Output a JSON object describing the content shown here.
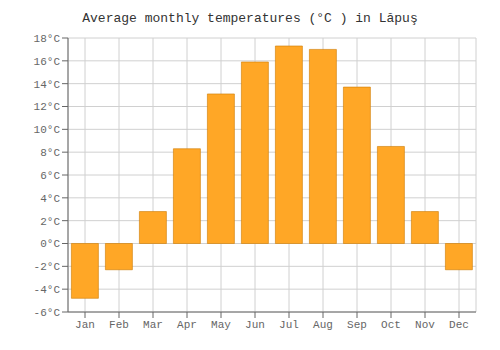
{
  "chart_data": {
    "type": "bar",
    "title": "Average monthly temperatures (°C ) in Lăpuş",
    "categories": [
      "Jan",
      "Feb",
      "Mar",
      "Apr",
      "May",
      "Jun",
      "Jul",
      "Aug",
      "Sep",
      "Oct",
      "Nov",
      "Dec"
    ],
    "values": [
      -4.8,
      -2.3,
      2.8,
      8.3,
      13.1,
      15.9,
      17.3,
      17.0,
      13.7,
      8.5,
      2.8,
      -2.3
    ],
    "color": "#FFA726",
    "ylim": [
      -6,
      18
    ],
    "yticks": [
      {
        "value": -6,
        "label": "-6°C"
      },
      {
        "value": -4,
        "label": "-4°C"
      },
      {
        "value": -2,
        "label": "-2°C"
      },
      {
        "value": 0,
        "label": "0°C"
      },
      {
        "value": 2,
        "label": "2°C"
      },
      {
        "value": 4,
        "label": "4°C"
      },
      {
        "value": 6,
        "label": "6°C"
      },
      {
        "value": 8,
        "label": "8°C"
      },
      {
        "value": 10,
        "label": "10°C"
      },
      {
        "value": 12,
        "label": "12°C"
      },
      {
        "value": 14,
        "label": "14°C"
      },
      {
        "value": 16,
        "label": "16°C"
      },
      {
        "value": 18,
        "label": "18°C"
      }
    ],
    "grid": true
  }
}
